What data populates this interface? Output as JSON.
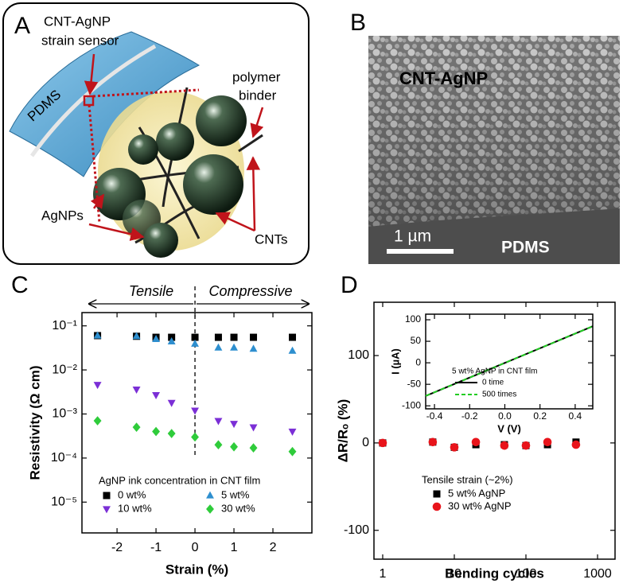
{
  "panels": {
    "a": {
      "label": "A",
      "sensor_label": [
        "CNT-AgNP",
        "strain sensor"
      ],
      "substrate": "PDMS",
      "binder_label": [
        "polymer",
        "binder"
      ],
      "particles_label": "AgNPs",
      "tubes_label": "CNTs"
    },
    "b": {
      "label": "B",
      "film_label": "CNT-AgNP",
      "substrate": "PDMS",
      "scale_bar": "1 µm"
    }
  },
  "chart_data": [
    {
      "panel_label": "C",
      "type": "scatter",
      "xlabel": "Strain (%)",
      "ylabel": "Resistivity (Ω cm)",
      "x": [
        -2.5,
        -1.5,
        -1,
        -0.6,
        0,
        0.6,
        1,
        1.5,
        2.5
      ],
      "xlim": [
        -2.9,
        3.0
      ],
      "xticks": [
        -2,
        -1,
        0,
        1,
        2
      ],
      "log_y": true,
      "ylim": [
        2e-06,
        0.2
      ],
      "yticks": [
        {
          "value": 0.1,
          "label": "10⁻¹"
        },
        {
          "value": 0.01,
          "label": "10⁻²"
        },
        {
          "value": 0.001,
          "label": "10⁻³"
        },
        {
          "value": 0.0001,
          "label": "10⁻⁴"
        },
        {
          "value": 1e-05,
          "label": "10⁻⁵"
        }
      ],
      "annotations": [
        "Tensile",
        "Compressive"
      ],
      "vline_x": 0,
      "legend_title": "AgNP ink concentration in CNT film",
      "series": [
        {
          "name": "0 wt%",
          "color": "#000000",
          "marker": "square",
          "values": [
            0.06,
            0.058,
            0.055,
            0.055,
            0.055,
            0.055,
            0.055,
            0.055,
            0.055
          ]
        },
        {
          "name": "5 wt%",
          "color": "#2e8fcf",
          "marker": "triangle-up",
          "values": [
            0.06,
            0.058,
            0.05,
            0.044,
            0.039,
            0.032,
            0.032,
            0.03,
            0.027
          ]
        },
        {
          "name": "10 wt%",
          "color": "#7b2fd6",
          "marker": "triangle-down",
          "values": [
            0.0046,
            0.0036,
            0.0027,
            0.0018,
            0.0012,
            0.0007,
            0.0006,
            0.0005,
            0.0004
          ]
        },
        {
          "name": "30 wt%",
          "color": "#2fcc3b",
          "marker": "diamond",
          "values": [
            0.0007,
            0.0005,
            0.0004,
            0.00036,
            0.0003,
            0.0002,
            0.00018,
            0.00017,
            0.00014
          ]
        }
      ]
    },
    {
      "panel_label": "D",
      "type": "scatter",
      "xlabel": "Bending cycles",
      "ylabel": "ΔR/Rₒ (%)",
      "x": [
        1,
        5,
        10,
        20,
        50,
        100,
        200,
        500
      ],
      "log_x": true,
      "xlim": [
        0.755,
        1755
      ],
      "xticks": [
        1,
        10,
        100,
        1000
      ],
      "ylim": [
        -133,
        161
      ],
      "yticks": [
        -100,
        0,
        100
      ],
      "legend_title": "Tensile strain (~2%)",
      "series": [
        {
          "name": "5 wt% AgNP",
          "color": "#000000",
          "marker": "square",
          "values": [
            0,
            1,
            -5,
            -2,
            -2,
            -3,
            -2,
            1
          ]
        },
        {
          "name": "30 wt% AgNP",
          "color": "#e8141b",
          "marker": "circle",
          "values": [
            0,
            1,
            -5,
            1,
            -3,
            -3,
            1,
            -2
          ]
        }
      ]
    },
    {
      "type": "line",
      "xlabel": "V (V)",
      "ylabel": "I (µA)",
      "x": [
        -0.45,
        0.5
      ],
      "xlim": [
        -0.45,
        0.5
      ],
      "xticks": [
        -0.4,
        -0.2,
        {
          "value": 0,
          "label": "0.0"
        },
        0.2,
        0.4
      ],
      "ylim": [
        -107,
        113
      ],
      "yticks": [
        -100,
        -50,
        0,
        50,
        100
      ],
      "legend_title": "5 wt% AgNP in CNT film",
      "series": [
        {
          "name": "0 time",
          "color": "#000000",
          "dash": false,
          "values": [
            -77,
            85
          ]
        },
        {
          "name": "500 times",
          "color": "#22cc22",
          "dash": true,
          "values": [
            -77,
            85
          ]
        }
      ]
    }
  ]
}
